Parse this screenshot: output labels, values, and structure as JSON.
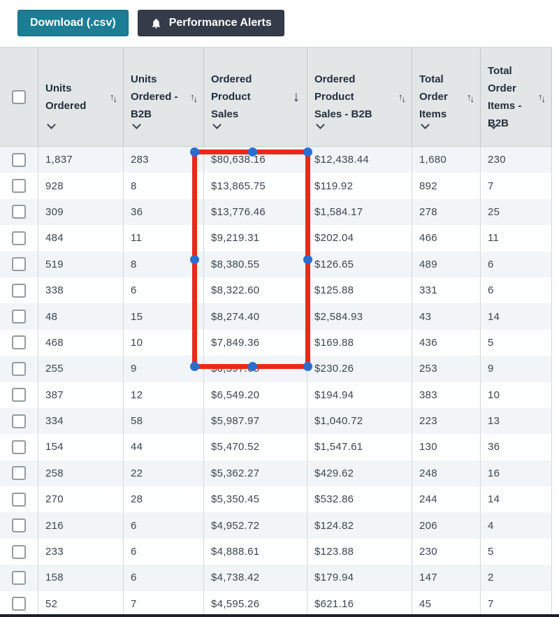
{
  "toolbar": {
    "download_label": "Download (.csv)",
    "alerts_label": "Performance Alerts"
  },
  "table": {
    "columns": [
      {
        "key": "units-ordered",
        "label": "Units Ordered",
        "sort": "both"
      },
      {
        "key": "units-ordered-b2b",
        "label": "Units Ordered - B2B",
        "sort": "both"
      },
      {
        "key": "ordered-product-sales",
        "label": "Ordered Product Sales",
        "sort": "desc"
      },
      {
        "key": "ordered-product-sales-b2b",
        "label": "Ordered Product Sales - B2B",
        "sort": "both"
      },
      {
        "key": "total-order-items",
        "label": "Total Order Items",
        "sort": "both"
      },
      {
        "key": "total-order-items-b2b",
        "label": "Total Order Items - B2B",
        "sort": "both"
      }
    ],
    "rows": [
      [
        "1,837",
        "283",
        "$80,638.16",
        "$12,438.44",
        "1,680",
        "230"
      ],
      [
        "928",
        "8",
        "$13,865.75",
        "$119.92",
        "892",
        "7"
      ],
      [
        "309",
        "36",
        "$13,776.46",
        "$1,584.17",
        "278",
        "25"
      ],
      [
        "484",
        "11",
        "$9,219.31",
        "$202.04",
        "466",
        "11"
      ],
      [
        "519",
        "8",
        "$8,380.55",
        "$126.65",
        "489",
        "6"
      ],
      [
        "338",
        "6",
        "$8,322.60",
        "$125.88",
        "331",
        "6"
      ],
      [
        "48",
        "15",
        "$8,274.40",
        "$2,584.93",
        "43",
        "14"
      ],
      [
        "468",
        "10",
        "$7,849.36",
        "$169.88",
        "436",
        "5"
      ],
      [
        "255",
        "9",
        "$6,597.65",
        "$230.26",
        "253",
        "9"
      ],
      [
        "387",
        "12",
        "$6,549.20",
        "$194.94",
        "383",
        "10"
      ],
      [
        "334",
        "58",
        "$5,987.97",
        "$1,040.72",
        "223",
        "13"
      ],
      [
        "154",
        "44",
        "$5,470.52",
        "$1,547.61",
        "130",
        "36"
      ],
      [
        "258",
        "22",
        "$5,362.27",
        "$429.62",
        "248",
        "16"
      ],
      [
        "270",
        "28",
        "$5,350.45",
        "$532.86",
        "244",
        "14"
      ],
      [
        "216",
        "6",
        "$4,952.72",
        "$124.82",
        "206",
        "4"
      ],
      [
        "233",
        "6",
        "$4,888.61",
        "$123.88",
        "230",
        "5"
      ],
      [
        "158",
        "6",
        "$4,738.42",
        "$179.94",
        "147",
        "2"
      ],
      [
        "52",
        "7",
        "$4,595.26",
        "$621.16",
        "45",
        "7"
      ]
    ],
    "sort_asc_glyph": "↑",
    "sort_desc_glyph": "↓"
  },
  "annotation": {
    "highlighted_column": "Ordered Product Sales",
    "rect_color": "#e8291c",
    "handle_color": "#2a6fd0"
  },
  "colors": {
    "download_button": "#1b7e94",
    "alerts_button": "#343c49",
    "header_bg": "#e2e6e6",
    "row_stripe": "#f1f5f7"
  }
}
